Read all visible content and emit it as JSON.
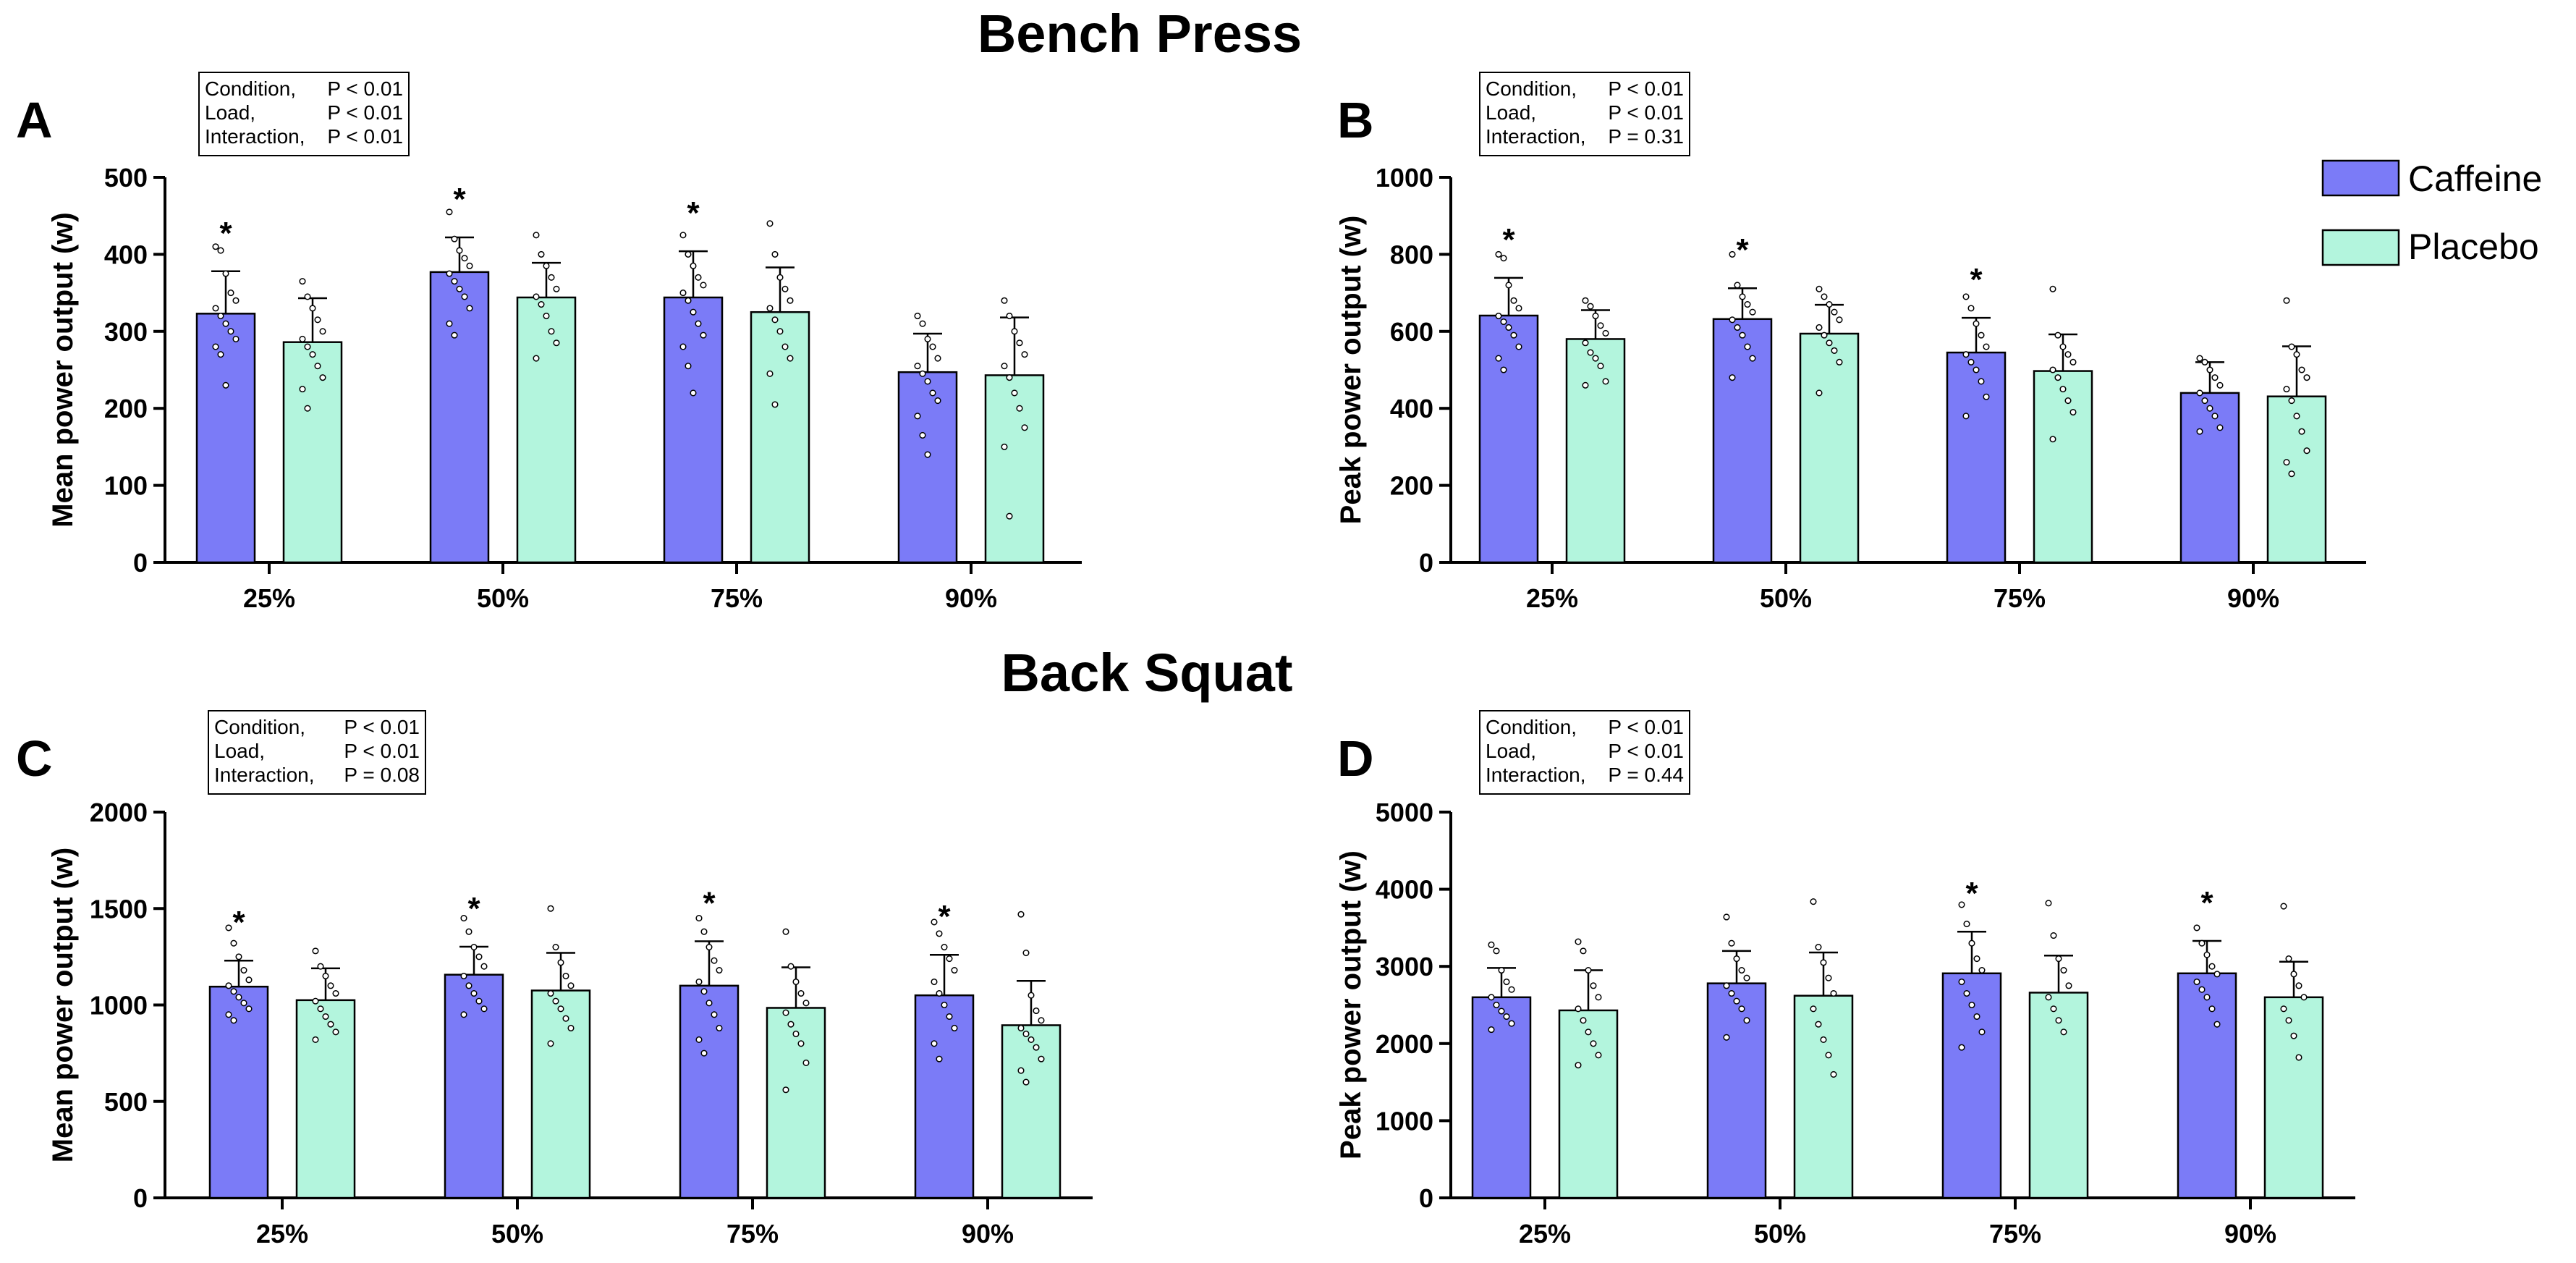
{
  "sections": [
    {
      "title": "Bench Press"
    },
    {
      "title": "Back Squat"
    }
  ],
  "legend": [
    {
      "label": "Caffeine",
      "color": "#7b7bf7"
    },
    {
      "label": "Placebo",
      "color": "#b3f5dd"
    }
  ],
  "chart_data": [
    {
      "panel": "A",
      "section": "Bench Press",
      "type": "bar",
      "ylabel": "Mean power output (w)",
      "ylim": [
        0,
        500
      ],
      "yticks": [
        0,
        100,
        200,
        300,
        400,
        500
      ],
      "categories": [
        "25%",
        "50%",
        "75%",
        "90%"
      ],
      "series": [
        {
          "name": "Caffeine",
          "values": [
            323,
            377,
            344,
            247
          ],
          "sd": [
            55,
            45,
            60,
            50
          ]
        },
        {
          "name": "Placebo",
          "values": [
            286,
            344,
            325,
            243
          ],
          "sd": [
            57,
            45,
            58,
            75
          ]
        }
      ],
      "significance": [
        "*",
        "*",
        "*",
        ""
      ],
      "stats": [
        {
          "label": "Condition,",
          "value": "P < 0.01"
        },
        {
          "label": "Load,",
          "value": "P < 0.01"
        },
        {
          "label": "Interaction,",
          "value": "P < 0.01"
        }
      ],
      "points": {
        "Caffeine": [
          [
            410,
            405,
            375,
            350,
            340,
            330,
            320,
            310,
            300,
            290,
            280,
            270,
            230
          ],
          [
            455,
            420,
            405,
            395,
            385,
            375,
            365,
            355,
            345,
            330,
            310,
            295
          ],
          [
            425,
            400,
            385,
            370,
            360,
            350,
            340,
            325,
            310,
            295,
            280,
            255,
            220
          ],
          [
            320,
            310,
            290,
            280,
            265,
            255,
            245,
            235,
            220,
            210,
            190,
            165,
            140
          ]
        ],
        "Placebo": [
          [
            365,
            345,
            330,
            315,
            300,
            290,
            280,
            270,
            255,
            240,
            225,
            200
          ],
          [
            425,
            400,
            385,
            370,
            355,
            345,
            335,
            320,
            300,
            285,
            265
          ],
          [
            440,
            400,
            370,
            355,
            340,
            330,
            315,
            300,
            280,
            265,
            245,
            205
          ],
          [
            340,
            320,
            300,
            285,
            270,
            255,
            240,
            220,
            200,
            175,
            150,
            60
          ]
        ]
      }
    },
    {
      "panel": "B",
      "section": "Bench Press",
      "type": "bar",
      "ylabel": "Peak power output (w)",
      "ylim": [
        0,
        1000
      ],
      "yticks": [
        0,
        200,
        400,
        600,
        800,
        1000
      ],
      "categories": [
        "25%",
        "50%",
        "75%",
        "90%"
      ],
      "series": [
        {
          "name": "Caffeine",
          "values": [
            641,
            632,
            545,
            440
          ],
          "sd": [
            98,
            80,
            90,
            80
          ]
        },
        {
          "name": "Placebo",
          "values": [
            580,
            594,
            497,
            431
          ],
          "sd": [
            75,
            75,
            95,
            130
          ]
        }
      ],
      "significance": [
        "*",
        "*",
        "*",
        ""
      ],
      "stats": [
        {
          "label": "Condition,",
          "value": "P < 0.01"
        },
        {
          "label": "Load,",
          "value": "P < 0.01"
        },
        {
          "label": "Interaction,",
          "value": "P = 0.31"
        }
      ],
      "points": {
        "Caffeine": [
          [
            800,
            790,
            720,
            680,
            660,
            640,
            625,
            610,
            590,
            560,
            530,
            500
          ],
          [
            800,
            720,
            690,
            670,
            650,
            630,
            610,
            590,
            560,
            530,
            480
          ],
          [
            690,
            660,
            620,
            590,
            560,
            540,
            520,
            500,
            470,
            430,
            380
          ],
          [
            530,
            520,
            500,
            480,
            460,
            440,
            420,
            400,
            380,
            350,
            340
          ]
        ],
        "Placebo": [
          [
            680,
            665,
            640,
            615,
            595,
            570,
            545,
            530,
            510,
            470,
            460
          ],
          [
            710,
            690,
            670,
            650,
            630,
            610,
            590,
            570,
            550,
            520,
            440
          ],
          [
            710,
            590,
            560,
            540,
            520,
            500,
            480,
            450,
            420,
            390,
            320
          ],
          [
            680,
            560,
            540,
            500,
            480,
            450,
            420,
            380,
            340,
            290,
            260,
            230
          ]
        ]
      }
    },
    {
      "panel": "C",
      "section": "Back Squat",
      "type": "bar",
      "ylabel": "Mean power output (w)",
      "ylim": [
        0,
        2000
      ],
      "yticks": [
        0,
        500,
        1000,
        1500,
        2000
      ],
      "categories": [
        "25%",
        "50%",
        "75%",
        "90%"
      ],
      "series": [
        {
          "name": "Caffeine",
          "values": [
            1095,
            1157,
            1100,
            1050
          ],
          "sd": [
            135,
            145,
            230,
            210
          ]
        },
        {
          "name": "Placebo",
          "values": [
            1025,
            1075,
            985,
            895
          ],
          "sd": [
            165,
            195,
            210,
            230
          ]
        }
      ],
      "significance": [
        "*",
        "*",
        "*",
        "*"
      ],
      "stats": [
        {
          "label": "Condition,",
          "value": "P < 0.01"
        },
        {
          "label": "Load,",
          "value": "P < 0.01"
        },
        {
          "label": "Interaction,",
          "value": "P = 0.08"
        }
      ],
      "points": {
        "Caffeine": [
          [
            1400,
            1320,
            1250,
            1180,
            1130,
            1100,
            1070,
            1040,
            1010,
            980,
            950,
            920
          ],
          [
            1450,
            1380,
            1300,
            1250,
            1200,
            1150,
            1100,
            1060,
            1020,
            980,
            950
          ],
          [
            1450,
            1380,
            1300,
            1230,
            1180,
            1120,
            1070,
            1010,
            950,
            880,
            820,
            750
          ],
          [
            1430,
            1370,
            1300,
            1240,
            1180,
            1120,
            1060,
            1000,
            940,
            880,
            800,
            720
          ]
        ],
        "Placebo": [
          [
            1280,
            1200,
            1150,
            1100,
            1060,
            1020,
            980,
            940,
            900,
            860,
            820
          ],
          [
            1500,
            1300,
            1220,
            1150,
            1100,
            1060,
            1020,
            980,
            930,
            880,
            800
          ],
          [
            1380,
            1200,
            1120,
            1060,
            1010,
            960,
            900,
            850,
            800,
            700,
            560
          ],
          [
            1470,
            1270,
            1050,
            970,
            920,
            880,
            850,
            820,
            780,
            720,
            660,
            600
          ]
        ]
      }
    },
    {
      "panel": "D",
      "section": "Back Squat",
      "type": "bar",
      "ylabel": "Peak power output (w)",
      "ylim": [
        0,
        5000
      ],
      "yticks": [
        0,
        1000,
        2000,
        3000,
        4000,
        5000
      ],
      "categories": [
        "25%",
        "50%",
        "75%",
        "90%"
      ],
      "series": [
        {
          "name": "Caffeine",
          "values": [
            2600,
            2780,
            2910,
            2910
          ],
          "sd": [
            380,
            420,
            540,
            420
          ]
        },
        {
          "name": "Placebo",
          "values": [
            2430,
            2620,
            2660,
            2600
          ],
          "sd": [
            520,
            560,
            480,
            460
          ]
        }
      ],
      "significance": [
        "",
        "",
        "*",
        "*"
      ],
      "stats": [
        {
          "label": "Condition,",
          "value": "P < 0.01"
        },
        {
          "label": "Load,",
          "value": "P < 0.01"
        },
        {
          "label": "Interaction,",
          "value": "P = 0.44"
        }
      ],
      "points": {
        "Caffeine": [
          [
            3280,
            3200,
            2950,
            2800,
            2700,
            2600,
            2500,
            2420,
            2350,
            2260,
            2180
          ],
          [
            3640,
            3300,
            3100,
            2950,
            2850,
            2750,
            2650,
            2550,
            2450,
            2300,
            2080
          ],
          [
            3800,
            3550,
            3300,
            3100,
            2950,
            2800,
            2650,
            2500,
            2350,
            2150,
            1950
          ],
          [
            3500,
            3300,
            3150,
            3000,
            2900,
            2800,
            2700,
            2600,
            2450,
            2250
          ]
        ],
        "Placebo": [
          [
            3320,
            3200,
            2950,
            2750,
            2600,
            2450,
            2300,
            2150,
            2000,
            1850,
            1720
          ],
          [
            3840,
            3250,
            3050,
            2850,
            2650,
            2450,
            2250,
            2050,
            1850,
            1600
          ],
          [
            3820,
            3400,
            3100,
            2950,
            2750,
            2600,
            2450,
            2300,
            2150
          ],
          [
            3780,
            3100,
            2900,
            2750,
            2600,
            2450,
            2300,
            2100,
            1820
          ]
        ]
      }
    }
  ]
}
